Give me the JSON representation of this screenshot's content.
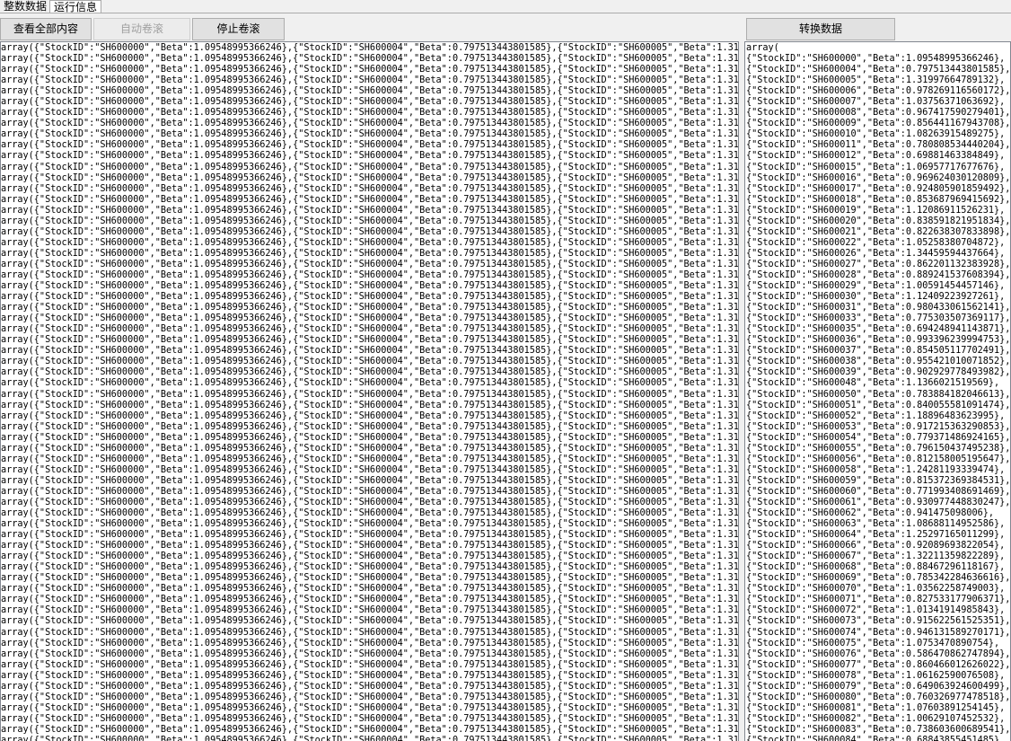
{
  "tabs": [
    "整数数据",
    "运行信息"
  ],
  "buttons": {
    "view_all": "查看全部内容",
    "auto_scroll": "自动卷滚",
    "stop_scroll": "停止卷滚",
    "convert": "转换数据"
  },
  "left_panel": {
    "lines": [
      "array({\"StockID\":\"SH600000\",\"Beta\":1.09548995366246},{\"StockID\":\"SH600004\",\"Beta\":0.797513443801585},{\"StockID\":\"SH600005\",\"Beta\":1.31",
      "array({\"StockID\":\"SH600000\",\"Beta\":1.09548995366246},{\"StockID\":\"SH600004\",\"Beta\":0.797513443801585},{\"StockID\":\"SH600005\",\"Beta\":1.31",
      "array({\"StockID\":\"SH600000\",\"Beta\":1.09548995366246},{\"StockID\":\"SH600004\",\"Beta\":0.797513443801585},{\"StockID\":\"SH600005\",\"Beta\":1.31",
      "array({\"StockID\":\"SH600000\",\"Beta\":1.09548995366246},{\"StockID\":\"SH600004\",\"Beta\":0.797513443801585},{\"StockID\":\"SH600005\",\"Beta\":1.31",
      "array({\"StockID\":\"SH600000\",\"Beta\":1.09548995366246},{\"StockID\":\"SH600004\",\"Beta\":0.797513443801585},{\"StockID\":\"SH600005\",\"Beta\":1.31",
      "array({\"StockID\":\"SH600000\",\"Beta\":1.09548995366246},{\"StockID\":\"SH600004\",\"Beta\":0.797513443801585},{\"StockID\":\"SH600005\",\"Beta\":1.31",
      "array({\"StockID\":\"SH600000\",\"Beta\":1.09548995366246},{\"StockID\":\"SH600004\",\"Beta\":0.797513443801585},{\"StockID\":\"SH600005\",\"Beta\":1.31",
      "array({\"StockID\":\"SH600000\",\"Beta\":1.09548995366246},{\"StockID\":\"SH600004\",\"Beta\":0.797513443801585},{\"StockID\":\"SH600005\",\"Beta\":1.31",
      "array({\"StockID\":\"SH600000\",\"Beta\":1.09548995366246},{\"StockID\":\"SH600004\",\"Beta\":0.797513443801585},{\"StockID\":\"SH600005\",\"Beta\":1.31",
      "array({\"StockID\":\"SH600000\",\"Beta\":1.09548995366246},{\"StockID\":\"SH600004\",\"Beta\":0.797513443801585},{\"StockID\":\"SH600005\",\"Beta\":1.31",
      "array({\"StockID\":\"SH600000\",\"Beta\":1.09548995366246},{\"StockID\":\"SH600004\",\"Beta\":0.797513443801585},{\"StockID\":\"SH600005\",\"Beta\":1.31",
      "array({\"StockID\":\"SH600000\",\"Beta\":1.09548995366246},{\"StockID\":\"SH600004\",\"Beta\":0.797513443801585},{\"StockID\":\"SH600005\",\"Beta\":1.31",
      "array({\"StockID\":\"SH600000\",\"Beta\":1.09548995366246},{\"StockID\":\"SH600004\",\"Beta\":0.797513443801585},{\"StockID\":\"SH600005\",\"Beta\":1.31",
      "array({\"StockID\":\"SH600000\",\"Beta\":1.09548995366246},{\"StockID\":\"SH600004\",\"Beta\":0.797513443801585},{\"StockID\":\"SH600005\",\"Beta\":1.31",
      "array({\"StockID\":\"SH600000\",\"Beta\":1.09548995366246},{\"StockID\":\"SH600004\",\"Beta\":0.797513443801585},{\"StockID\":\"SH600005\",\"Beta\":1.31",
      "array({\"StockID\":\"SH600000\",\"Beta\":1.09548995366246},{\"StockID\":\"SH600004\",\"Beta\":0.797513443801585},{\"StockID\":\"SH600005\",\"Beta\":1.31",
      "array({\"StockID\":\"SH600000\",\"Beta\":1.09548995366246},{\"StockID\":\"SH600004\",\"Beta\":0.797513443801585},{\"StockID\":\"SH600005\",\"Beta\":1.31",
      "array({\"StockID\":\"SH600000\",\"Beta\":1.09548995366246},{\"StockID\":\"SH600004\",\"Beta\":0.797513443801585},{\"StockID\":\"SH600005\",\"Beta\":1.31",
      "array({\"StockID\":\"SH600000\",\"Beta\":1.09548995366246},{\"StockID\":\"SH600004\",\"Beta\":0.797513443801585},{\"StockID\":\"SH600005\",\"Beta\":1.31",
      "array({\"StockID\":\"SH600000\",\"Beta\":1.09548995366246},{\"StockID\":\"SH600004\",\"Beta\":0.797513443801585},{\"StockID\":\"SH600005\",\"Beta\":1.31",
      "array({\"StockID\":\"SH600000\",\"Beta\":1.09548995366246},{\"StockID\":\"SH600004\",\"Beta\":0.797513443801585},{\"StockID\":\"SH600005\",\"Beta\":1.31",
      "array({\"StockID\":\"SH600000\",\"Beta\":1.09548995366246},{\"StockID\":\"SH600004\",\"Beta\":0.797513443801585},{\"StockID\":\"SH600005\",\"Beta\":1.31",
      "array({\"StockID\":\"SH600000\",\"Beta\":1.09548995366246},{\"StockID\":\"SH600004\",\"Beta\":0.797513443801585},{\"StockID\":\"SH600005\",\"Beta\":1.31",
      "array({\"StockID\":\"SH600000\",\"Beta\":1.09548995366246},{\"StockID\":\"SH600004\",\"Beta\":0.797513443801585},{\"StockID\":\"SH600005\",\"Beta\":1.31",
      "array({\"StockID\":\"SH600000\",\"Beta\":1.09548995366246},{\"StockID\":\"SH600004\",\"Beta\":0.797513443801585},{\"StockID\":\"SH600005\",\"Beta\":1.31",
      "array({\"StockID\":\"SH600000\",\"Beta\":1.09548995366246},{\"StockID\":\"SH600004\",\"Beta\":0.797513443801585},{\"StockID\":\"SH600005\",\"Beta\":1.31",
      "array({\"StockID\":\"SH600000\",\"Beta\":1.09548995366246},{\"StockID\":\"SH600004\",\"Beta\":0.797513443801585},{\"StockID\":\"SH600005\",\"Beta\":1.31",
      "array({\"StockID\":\"SH600000\",\"Beta\":1.09548995366246},{\"StockID\":\"SH600004\",\"Beta\":0.797513443801585},{\"StockID\":\"SH600005\",\"Beta\":1.31",
      "array({\"StockID\":\"SH600000\",\"Beta\":1.09548995366246},{\"StockID\":\"SH600004\",\"Beta\":0.797513443801585},{\"StockID\":\"SH600005\",\"Beta\":1.31",
      "array({\"StockID\":\"SH600000\",\"Beta\":1.09548995366246},{\"StockID\":\"SH600004\",\"Beta\":0.797513443801585},{\"StockID\":\"SH600005\",\"Beta\":1.31",
      "array({\"StockID\":\"SH600000\",\"Beta\":1.09548995366246},{\"StockID\":\"SH600004\",\"Beta\":0.797513443801585},{\"StockID\":\"SH600005\",\"Beta\":1.31",
      "array({\"StockID\":\"SH600000\",\"Beta\":1.09548995366246},{\"StockID\":\"SH600004\",\"Beta\":0.797513443801585},{\"StockID\":\"SH600005\",\"Beta\":1.31",
      "array({\"StockID\":\"SH600000\",\"Beta\":1.09548995366246},{\"StockID\":\"SH600004\",\"Beta\":0.797513443801585},{\"StockID\":\"SH600005\",\"Beta\":1.31",
      "array({\"StockID\":\"SH600000\",\"Beta\":1.09548995366246},{\"StockID\":\"SH600004\",\"Beta\":0.797513443801585},{\"StockID\":\"SH600005\",\"Beta\":1.31",
      "array({\"StockID\":\"SH600000\",\"Beta\":1.09548995366246},{\"StockID\":\"SH600004\",\"Beta\":0.797513443801585},{\"StockID\":\"SH600005\",\"Beta\":1.31",
      "array({\"StockID\":\"SH600000\",\"Beta\":1.09548995366246},{\"StockID\":\"SH600004\",\"Beta\":0.797513443801585},{\"StockID\":\"SH600005\",\"Beta\":1.31",
      "array({\"StockID\":\"SH600000\",\"Beta\":1.09548995366246},{\"StockID\":\"SH600004\",\"Beta\":0.797513443801585},{\"StockID\":\"SH600005\",\"Beta\":1.31",
      "array({\"StockID\":\"SH600000\",\"Beta\":1.09548995366246},{\"StockID\":\"SH600004\",\"Beta\":0.797513443801585},{\"StockID\":\"SH600005\",\"Beta\":1.31",
      "array({\"StockID\":\"SH600000\",\"Beta\":1.09548995366246},{\"StockID\":\"SH600004\",\"Beta\":0.797513443801585},{\"StockID\":\"SH600005\",\"Beta\":1.31",
      "array({\"StockID\":\"SH600000\",\"Beta\":1.09548995366246},{\"StockID\":\"SH600004\",\"Beta\":0.797513443801585},{\"StockID\":\"SH600005\",\"Beta\":1.31",
      "array({\"StockID\":\"SH600000\",\"Beta\":1.09548995366246},{\"StockID\":\"SH600004\",\"Beta\":0.797513443801585},{\"StockID\":\"SH600005\",\"Beta\":1.31",
      "array({\"StockID\":\"SH600000\",\"Beta\":1.09548995366246},{\"StockID\":\"SH600004\",\"Beta\":0.797513443801585},{\"StockID\":\"SH600005\",\"Beta\":1.31",
      "array({\"StockID\":\"SH600000\",\"Beta\":1.09548995366246},{\"StockID\":\"SH600004\",\"Beta\":0.797513443801585},{\"StockID\":\"SH600005\",\"Beta\":1.31",
      "array({\"StockID\":\"SH600000\",\"Beta\":1.09548995366246},{\"StockID\":\"SH600004\",\"Beta\":0.797513443801585},{\"StockID\":\"SH600005\",\"Beta\":1.31",
      "array({\"StockID\":\"SH600000\",\"Beta\":1.09548995366246},{\"StockID\":\"SH600004\",\"Beta\":0.797513443801585},{\"StockID\":\"SH600005\",\"Beta\":1.31",
      "array({\"StockID\":\"SH600000\",\"Beta\":1.09548995366246},{\"StockID\":\"SH600004\",\"Beta\":0.797513443801585},{\"StockID\":\"SH600005\",\"Beta\":1.31",
      "array({\"StockID\":\"SH600000\",\"Beta\":1.09548995366246},{\"StockID\":\"SH600004\",\"Beta\":0.797513443801585},{\"StockID\":\"SH600005\",\"Beta\":1.31",
      "array({\"StockID\":\"SH600000\",\"Beta\":1.09548995366246},{\"StockID\":\"SH600004\",\"Beta\":0.797513443801585},{\"StockID\":\"SH600005\",\"Beta\":1.31",
      "array({\"StockID\":\"SH600000\",\"Beta\":1.09548995366246},{\"StockID\":\"SH600004\",\"Beta\":0.797513443801585},{\"StockID\":\"SH600005\",\"Beta\":1.31",
      "array({\"StockID\":\"SH600000\",\"Beta\":1.09548995366246},{\"StockID\":\"SH600004\",\"Beta\":0.797513443801585},{\"StockID\":\"SH600005\",\"Beta\":1.31",
      "array({\"StockID\":\"SH600000\",\"Beta\":1.09548995366246},{\"StockID\":\"SH600004\",\"Beta\":0.797513443801585},{\"StockID\":\"SH600005\",\"Beta\":1.31",
      "array({\"StockID\":\"SH600000\",\"Beta\":1.09548995366246},{\"StockID\":\"SH600004\",\"Beta\":0.797513443801585},{\"StockID\":\"SH600005\",\"Beta\":1.31",
      "array({\"StockID\":\"SH600000\",\"Beta\":1.09548995366246},{\"StockID\":\"SH600004\",\"Beta\":0.797513443801585},{\"StockID\":\"SH600005\",\"Beta\":1.31",
      "array({\"StockID\":\"SH600000\",\"Beta\":1.09548995366246},{\"StockID\":\"SH600004\",\"Beta\":0.797513443801585},{\"StockID\":\"SH600005\",\"Beta\":1.31",
      "array({\"StockID\":\"SH600000\",\"Beta\":1.09548995366246},{\"StockID\":\"SH600004\",\"Beta\":0.797513443801585},{\"StockID\":\"SH600005\",\"Beta\":1.31",
      "array({\"StockID\":\"SH600000\",\"Beta\":1.09548995366246},{\"StockID\":\"SH600004\",\"Beta\":0.797513443801585},{\"StockID\":\"SH600005\",\"Beta\":1.31",
      "array({\"StockID\":\"SH600000\",\"Beta\":1.09548995366246},{\"StockID\":\"SH600004\",\"Beta\":0.797513443801585},{\"StockID\":\"SH600005\",\"Beta\":1.31",
      "array({\"StockID\":\"SH600000\",\"Beta\":1.09548995366246},{\"StockID\":\"SH600004\",\"Beta\":0.797513443801585},{\"StockID\":\"SH600005\",\"Beta\":1.31",
      "array({\"StockID\":\"SH600000\",\"Beta\":1.09548995366246},{\"StockID\":\"SH600004\",\"Beta\":0.797513443801585},{\"StockID\":\"SH600005\",\"Beta\":1.31",
      "array({\"StockID\":\"SH600000\",\"Beta\":1.09548995366246},{\"StockID\":\"SH600004\",\"Beta\":0.797513443801585},{\"StockID\":\"SH600005\",\"Beta\":1.31",
      "array({\"StockID\":\"SH600000\",\"Beta\":1.09548995366246},{\"StockID\":\"SH600004\",\"Beta\":0.797513443801585},{\"StockID\":\"SH600005\",\"Beta\":1.31",
      "array({\"StockID\":\"SH600000\",\"Beta\":1.09548995366246},{\"StockID\":\"SH600004\",\"Beta\":0.797513443801585},{\"StockID\":\"SH600005\",\"Beta\":1.31",
      "array({\"StockID\":\"SH600000\",\"Beta\":1.09548995366246},{\"StockID\":\"SH600004\",\"Beta\":0.797513443801585},{\"StockID\":\"SH600005\",\"Beta\":1.31",
      "array({\"StockID\":\"SH600000\",\"Beta\":1.09548995366246},{\"StockID\":\"SH600004\",\"Beta\":0.797513443801585},{\"StockID\":\"SH600005\",\"Beta\":1.31",
      "array({\"StockID\":\"SH600000\",\"Beta\":1.09548995366246},{\"StockID\":\"SH600004\",\"Beta\":0.797513443801585},{\"StockID\":\"SH600005\",\"Beta\":1.31"
    ]
  },
  "right_panel": {
    "lines": [
      "array(",
      "{\"StockID\":\"SH600000\",\"Beta\":1.09548995366246},",
      "{\"StockID\":\"SH600004\",\"Beta\":0.797513443801585},",
      "{\"StockID\":\"SH600005\",\"Beta\":1.31997664789132},",
      "{\"StockID\":\"SH600006\",\"Beta\":0.978269116560172},",
      "{\"StockID\":\"SH600007\",\"Beta\":1.03756371063692},",
      "{\"StockID\":\"SH600008\",\"Beta\":0.967417590279401},",
      "{\"StockID\":\"SH600009\",\"Beta\":0.856441167943708},",
      "{\"StockID\":\"SH600010\",\"Beta\":1.08263915489275},",
      "{\"StockID\":\"SH600011\",\"Beta\":0.780808534440204},",
      "{\"StockID\":\"SH600012\",\"Beta\":0.69881463384849},",
      "{\"StockID\":\"SH600015\",\"Beta\":1.06957717677676},",
      "{\"StockID\":\"SH600016\",\"Beta\":0.969624030120809},",
      "{\"StockID\":\"SH600017\",\"Beta\":0.924805901859492},",
      "{\"StockID\":\"SH600018\",\"Beta\":0.853687969415692},",
      "{\"StockID\":\"SH600019\",\"Beta\":1.12086911526231},",
      "{\"StockID\":\"SH600020\",\"Beta\":0.838591821951834},",
      "{\"StockID\":\"SH600021\",\"Beta\":0.822638307833898},",
      "{\"StockID\":\"SH600022\",\"Beta\":1.05258380704872},",
      "{\"StockID\":\"SH600026\",\"Beta\":1.34459594437664},",
      "{\"StockID\":\"SH600027\",\"Beta\":0.862201132383928},",
      "{\"StockID\":\"SH600028\",\"Beta\":0.889241537608394},",
      "{\"StockID\":\"SH600029\",\"Beta\":1.00591454457146},",
      "{\"StockID\":\"SH600030\",\"Beta\":1.12409223927261},",
      "{\"StockID\":\"SH600031\",\"Beta\":0.980433061562141},",
      "{\"StockID\":\"SH600033\",\"Beta\":0.775303507369117},",
      "{\"StockID\":\"SH600035\",\"Beta\":0.694248941143871},",
      "{\"StockID\":\"SH600036\",\"Beta\":0.993396239994753},",
      "{\"StockID\":\"SH600037\",\"Beta\":0.854505117702491},",
      "{\"StockID\":\"SH600038\",\"Beta\":0.955421010071852},",
      "{\"StockID\":\"SH600039\",\"Beta\":0.902929778493982},",
      "{\"StockID\":\"SH600048\",\"Beta\":1.1366021519569},",
      "{\"StockID\":\"SH600050\",\"Beta\":0.783884182046613},",
      "{\"StockID\":\"SH600051\",\"Beta\":0.840055581091474},",
      "{\"StockID\":\"SH600052\",\"Beta\":1.18896483623995},",
      "{\"StockID\":\"SH600053\",\"Beta\":0.917215363290853},",
      "{\"StockID\":\"SH600054\",\"Beta\":0.779371486924165},",
      "{\"StockID\":\"SH600055\",\"Beta\":0.796150437495238},",
      "{\"StockID\":\"SH600056\",\"Beta\":0.812158005195647},",
      "{\"StockID\":\"SH600058\",\"Beta\":1.24281193339474},",
      "{\"StockID\":\"SH600059\",\"Beta\":0.815372369384531},",
      "{\"StockID\":\"SH600060\",\"Beta\":0.771993408691469},",
      "{\"StockID\":\"SH600061\",\"Beta\":0.930977448830247},",
      "{\"StockID\":\"SH600062\",\"Beta\":0.941475098006},",
      "{\"StockID\":\"SH600063\",\"Beta\":1.08688114952586},",
      "{\"StockID\":\"SH600064\",\"Beta\":1.25297165011299},",
      "{\"StockID\":\"SH600066\",\"Beta\":0.92089693822054},",
      "{\"StockID\":\"SH600067\",\"Beta\":1.32211359822289},",
      "{\"StockID\":\"SH600068\",\"Beta\":0.88467296118167},",
      "{\"StockID\":\"SH600069\",\"Beta\":0.785342284636616},",
      "{\"StockID\":\"SH600070\",\"Beta\":1.03562258749003},",
      "{\"StockID\":\"SH600071\",\"Beta\":0.827533177906371},",
      "{\"StockID\":\"SH600072\",\"Beta\":1.01341914985843},",
      "{\"StockID\":\"SH600073\",\"Beta\":0.915622561525351},",
      "{\"StockID\":\"SH600074\",\"Beta\":0.946131589270171},",
      "{\"StockID\":\"SH600075\",\"Beta\":1.0753470890754},",
      "{\"StockID\":\"SH600076\",\"Beta\":0.586470862747894},",
      "{\"StockID\":\"SH600077\",\"Beta\":0.860466012626022},",
      "{\"StockID\":\"SH600078\",\"Beta\":1.06162590076508},",
      "{\"StockID\":\"SH600079\",\"Beta\":0.649063924600499},",
      "{\"StockID\":\"SH600080\",\"Beta\":0.760326977478518},",
      "{\"StockID\":\"SH600081\",\"Beta\":1.07603891254145},",
      "{\"StockID\":\"SH600082\",\"Beta\":1.00629107452532},",
      "{\"StockID\":\"SH600083\",\"Beta\":0.738603600689541},",
      "{\"StockID\":\"SH600084\",\"Beta\":0.68843855451485},"
    ]
  }
}
